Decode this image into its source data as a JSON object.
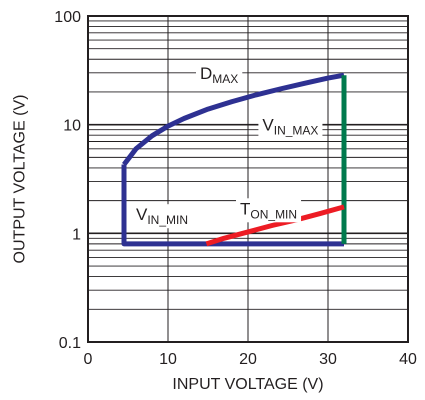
{
  "chart_data": {
    "type": "line",
    "xlabel": "INPUT VOLTAGE (V)",
    "ylabel": "OUTPUT VOLTAGE (V)",
    "xlim": [
      0,
      40
    ],
    "ylim": [
      0.1,
      100
    ],
    "yscale": "log",
    "grid": true,
    "x_ticks": [
      0,
      10,
      20,
      30,
      40
    ],
    "x_tick_labels": [
      "0",
      "10",
      "20",
      "30",
      "40"
    ],
    "y_ticks": [
      0.1,
      1,
      10,
      100
    ],
    "y_tick_labels": [
      "0.1",
      "1",
      "10",
      "100"
    ],
    "series": [
      {
        "color": "#2e3192",
        "x": [
          4.5,
          4.5,
          32
        ],
        "y": [
          4.3,
          0.8,
          0.8
        ]
      },
      {
        "color": "#2e3192",
        "x": [
          4.5,
          6,
          8,
          10,
          12,
          15,
          18,
          21,
          24,
          27,
          30,
          32
        ],
        "y": [
          4.3,
          6.0,
          7.9,
          9.7,
          11.4,
          13.9,
          16.3,
          18.8,
          21.3,
          24.0,
          26.8,
          28.5
        ]
      },
      {
        "color": "#007a4d",
        "x": [
          32,
          32
        ],
        "y": [
          0.8,
          28.5
        ]
      },
      {
        "color": "#ed1c24",
        "x": [
          14.8,
          17,
          20,
          23,
          26,
          29,
          32
        ],
        "y": [
          0.8,
          0.9,
          1.03,
          1.18,
          1.33,
          1.52,
          1.75
        ]
      }
    ],
    "annotations": [
      {
        "main": "D",
        "sub": "MAX",
        "x": 13.5,
        "y": 30
      },
      {
        "main": "V",
        "sub": "IN_MAX",
        "x": 21.3,
        "y": 10
      },
      {
        "main": "V",
        "sub": "IN_MIN",
        "x": 5.5,
        "y": 1.5
      },
      {
        "main": "T",
        "sub": "ON_MIN",
        "x": 18.5,
        "y": 1.7
      }
    ]
  }
}
